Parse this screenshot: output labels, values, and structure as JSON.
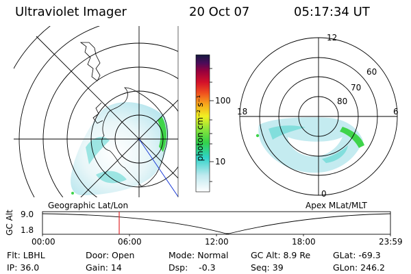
{
  "header": {
    "title": "Ultraviolet Imager",
    "date": "20 Oct 07",
    "time": "05:17:34 UT"
  },
  "colorbar": {
    "ticks": [
      "100",
      "10"
    ],
    "unit_label": "photon cm⁻² s⁻¹"
  },
  "geo_panel": {
    "label": "Geographic Lat/Lon"
  },
  "apex_panel": {
    "label": "Apex MLat/MLT",
    "lat_rings": [
      "60",
      "70",
      "80"
    ],
    "mlt_labels": [
      "12",
      "18",
      "6",
      "0"
    ]
  },
  "altitude_plot": {
    "ylabel": "GC Alt",
    "y_ticks": [
      "9.0",
      "1.8"
    ],
    "x_ticks": [
      "00:00",
      "06:00",
      "12:00",
      "18:00",
      "23:59"
    ],
    "current_time_fraction": 0.2205
  },
  "info": {
    "flt": "Flt: LBHL",
    "door": "Door: Open",
    "mode": "Mode: Normal",
    "gc_alt": "GC Alt: 8.9 Re",
    "glat": "GLat: -69.3",
    "ip": "IP: 36.0",
    "gain": "Gain: 14",
    "dsp": "Dsp:    -0.3",
    "seq": "Seq: 39",
    "glon": "GLon: 246.2"
  },
  "colors": {
    "aurora_low": "#b9e6ee",
    "aurora_mid": "#31cfc9",
    "aurora_high": "#44d64a",
    "time_marker": "#e0262a",
    "orbit_line": "#1f3fd8"
  }
}
